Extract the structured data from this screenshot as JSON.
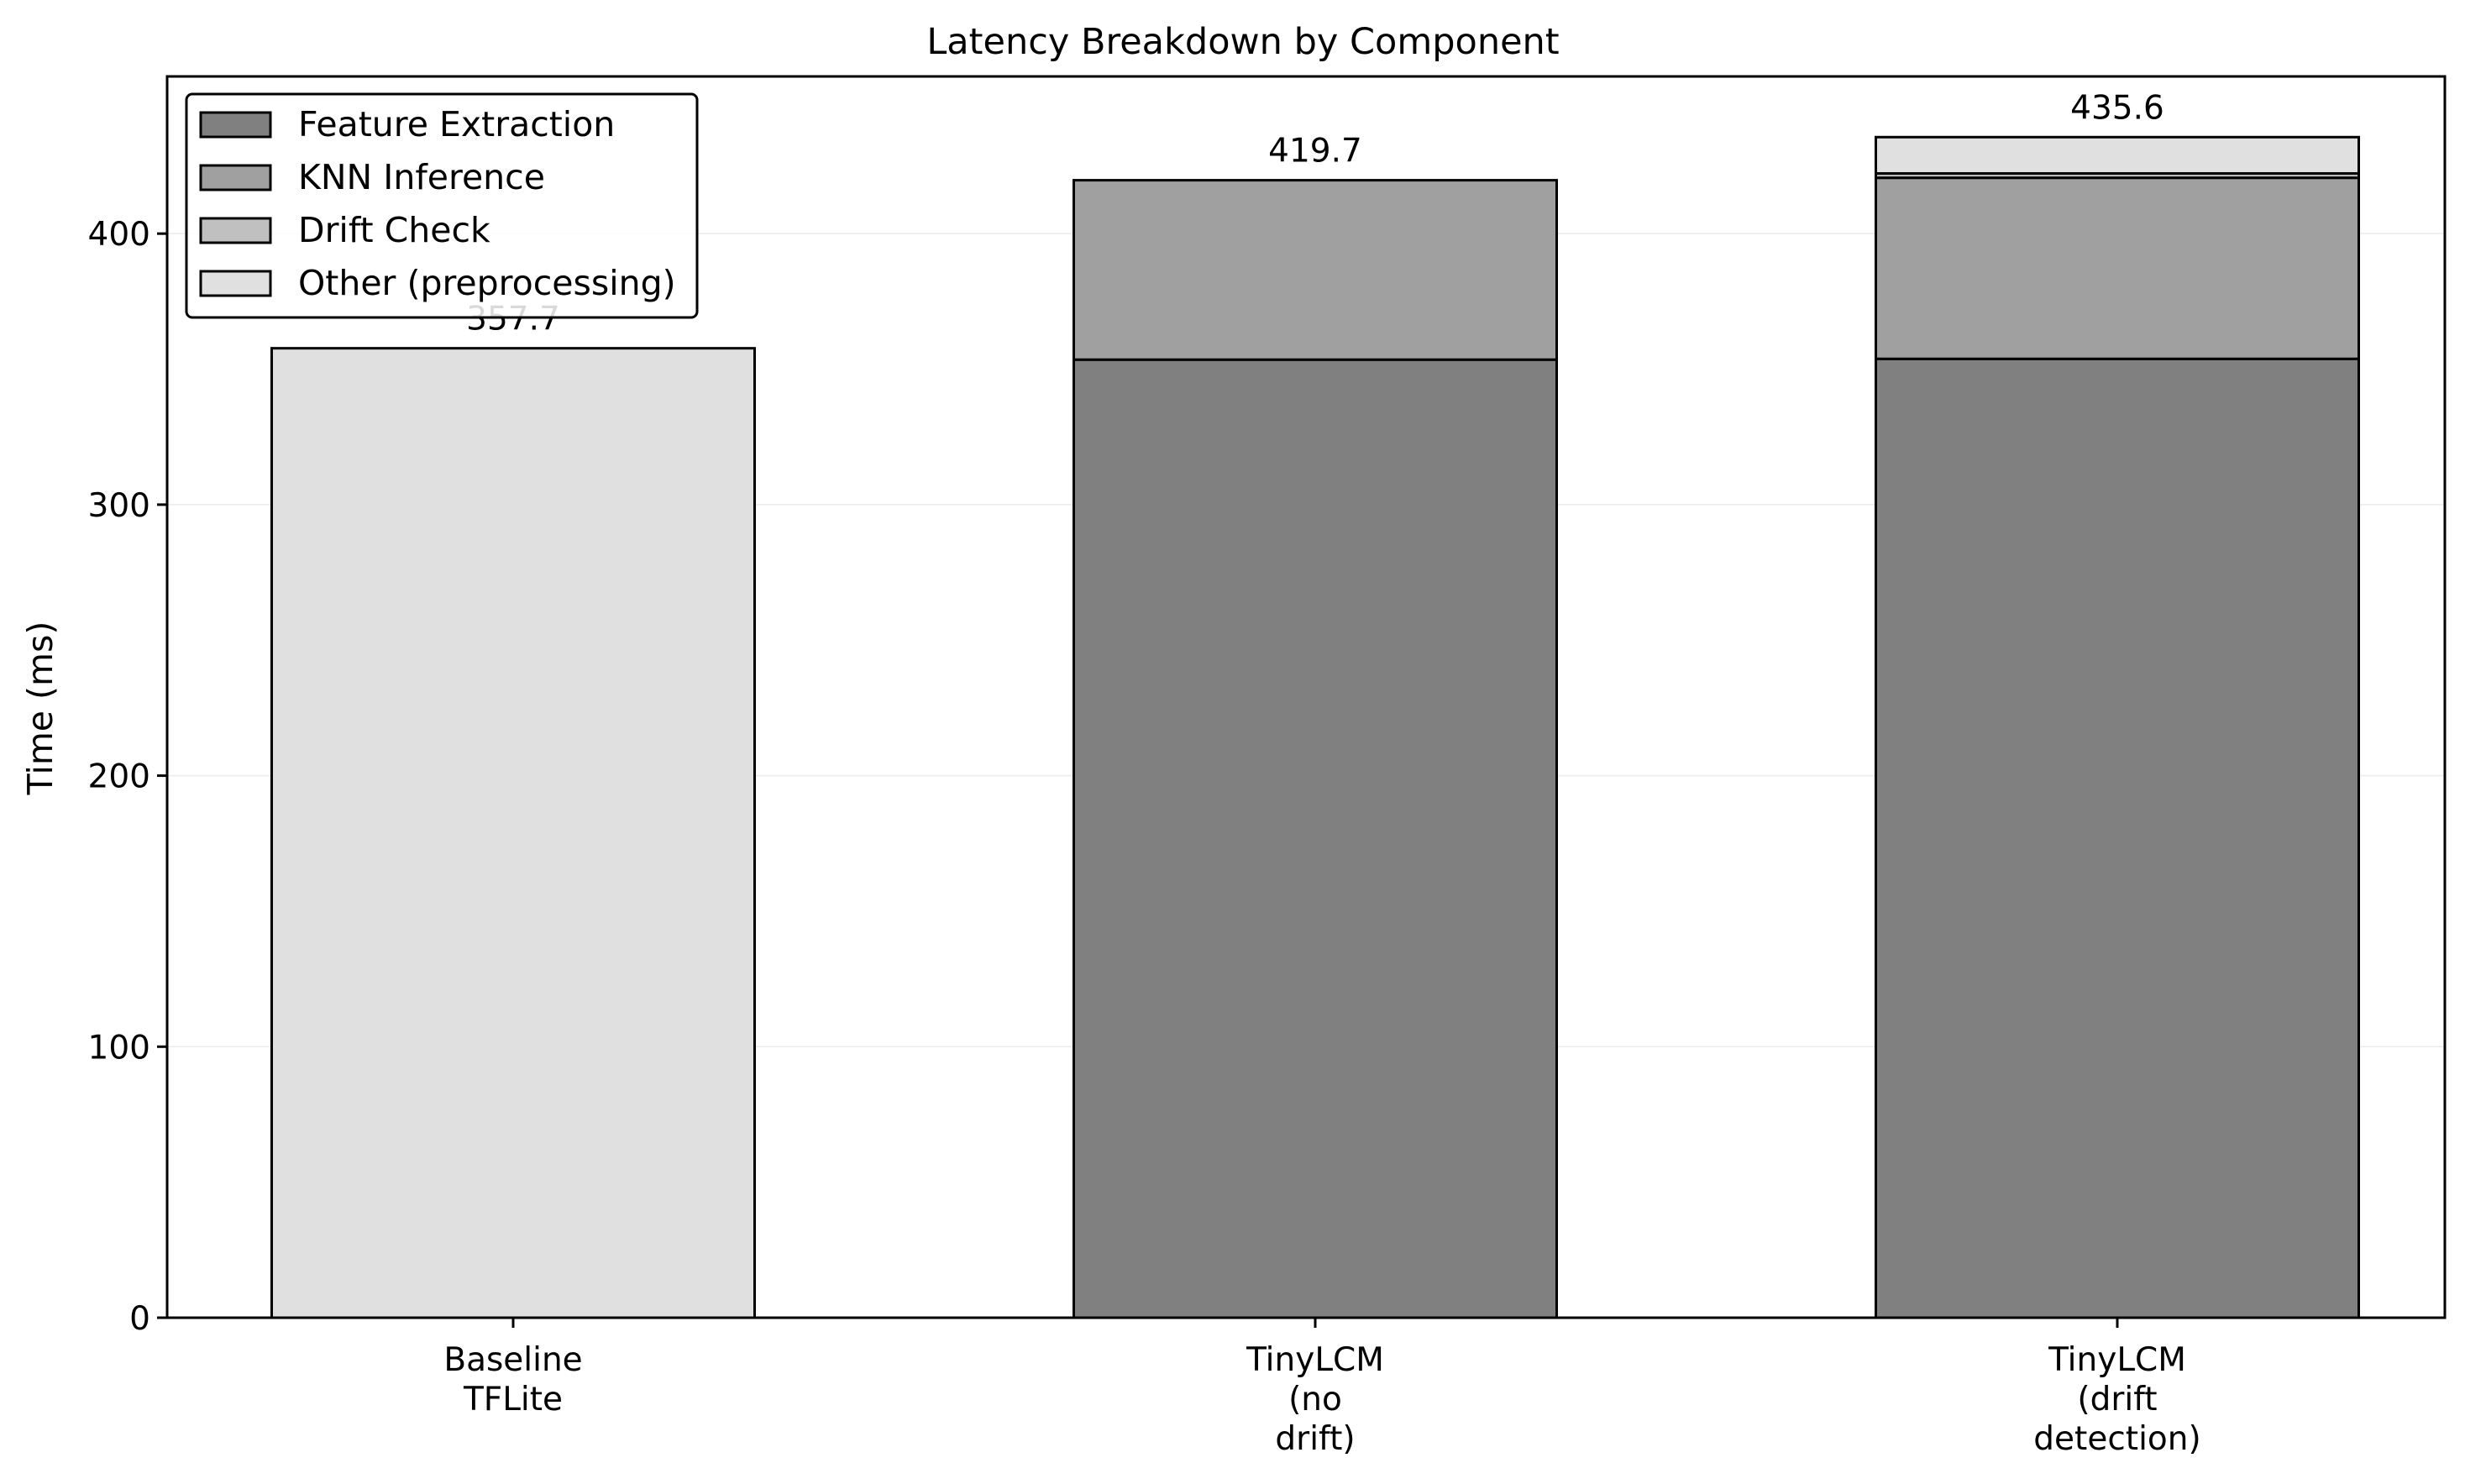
{
  "chart_data": {
    "type": "bar",
    "stacked": true,
    "title": "Latency Breakdown by Component",
    "xlabel": "",
    "ylabel": "Time (ms)",
    "ylim": [
      0,
      458
    ],
    "yticks": [
      0,
      100,
      200,
      300,
      400
    ],
    "grid": "horizontal, faint",
    "legend_position": "top-left",
    "categories": [
      [
        "Baseline",
        "TFLite"
      ],
      [
        "TinyLCM",
        "(no",
        "drift)"
      ],
      [
        "TinyLCM",
        "(drift",
        "detection)"
      ]
    ],
    "series": [
      {
        "name": "Feature Extraction",
        "color": "#808080",
        "values": [
          0,
          353.5,
          353.8
        ]
      },
      {
        "name": "KNN Inference",
        "color": "#a0a0a0",
        "values": [
          0,
          66.2,
          66.8
        ]
      },
      {
        "name": "Drift Check",
        "color": "#c0c0c0",
        "values": [
          0,
          0,
          1.6
        ]
      },
      {
        "name": "Other (preprocessing)",
        "color": "#e0e0e0",
        "values": [
          357.7,
          0,
          13.4
        ]
      }
    ],
    "totals": [
      357.7,
      419.7,
      435.6
    ],
    "total_labels": [
      "357.7",
      "419.7",
      "435.6"
    ]
  }
}
